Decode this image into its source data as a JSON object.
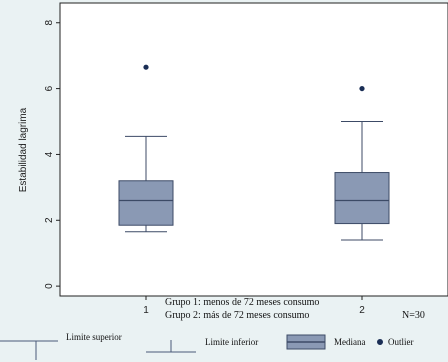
{
  "chart_data": {
    "type": "boxplot",
    "ylabel": "Estabilidad lagrima",
    "ylim": [
      -0.3,
      8.6
    ],
    "yticks": [
      0,
      2,
      4,
      6,
      8
    ],
    "categories": [
      "1",
      "2"
    ],
    "boxes": [
      {
        "category": "1",
        "whisker_low": 1.65,
        "q1": 1.85,
        "median": 2.6,
        "q3": 3.2,
        "whisker_high": 4.55,
        "outliers": [
          6.65
        ]
      },
      {
        "category": "2",
        "whisker_low": 1.4,
        "q1": 1.9,
        "median": 2.6,
        "q3": 3.45,
        "whisker_high": 5.0,
        "outliers": [
          6.0
        ]
      }
    ],
    "grid": false,
    "colors": {
      "box_fill": "#8a99b4",
      "box_edge": "#3c4a66",
      "outlier": "#1a2e55",
      "plot_bg": "#ffffff",
      "frame_bg": "#eaf2f3"
    }
  },
  "notes": {
    "line1": "Grupo 1: menos de 72 meses consumo",
    "line2": "Grupo 2: más de 72 meses consumo",
    "n": "N=30"
  },
  "legend": {
    "upper": "Limite superior",
    "lower": "Limite inferior",
    "median": "Mediana",
    "outlier": "Outlier"
  }
}
